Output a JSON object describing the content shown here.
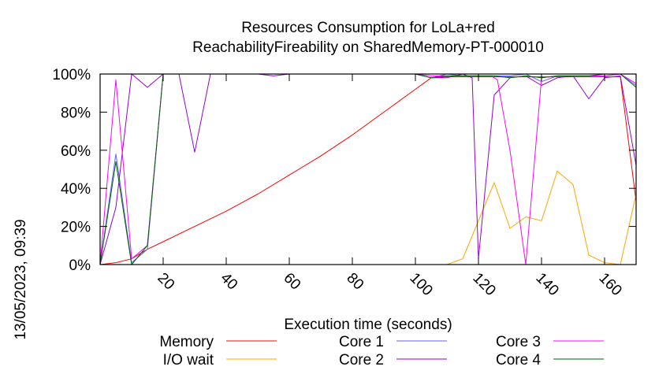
{
  "chart_data": {
    "type": "line",
    "title": "Resources Consumption for LoLa+red",
    "subtitle": "ReachabilityFireability on SharedMemory-PT-000010",
    "xlabel": "Execution time (seconds)",
    "ylabel": "",
    "side_label": "13/05/2023, 09:39",
    "xlim": [
      0,
      170
    ],
    "ylim": [
      0,
      100
    ],
    "x_ticks": [
      "20",
      "40",
      "60",
      "80",
      "100",
      "120",
      "140",
      "160"
    ],
    "y_ticks": [
      "0%",
      "20%",
      "40%",
      "60%",
      "80%",
      "100%"
    ],
    "grid": false,
    "legend_position": "bottom",
    "series": [
      {
        "name": "Memory",
        "color": "#ff0000",
        "points": [
          [
            0,
            0
          ],
          [
            5,
            1
          ],
          [
            10,
            3
          ],
          [
            15,
            8
          ],
          [
            20,
            12
          ],
          [
            30,
            20
          ],
          [
            40,
            28
          ],
          [
            50,
            37
          ],
          [
            60,
            47
          ],
          [
            70,
            57
          ],
          [
            80,
            68
          ],
          [
            90,
            80
          ],
          [
            100,
            92
          ],
          [
            105,
            98
          ],
          [
            110,
            98.5
          ],
          [
            120,
            98.5
          ],
          [
            130,
            98.5
          ],
          [
            140,
            98.5
          ],
          [
            150,
            98.5
          ],
          [
            160,
            98.5
          ],
          [
            165,
            98.5
          ],
          [
            170,
            33
          ]
        ]
      },
      {
        "name": "I/O wait",
        "color": "#ffa500",
        "points": [
          [
            0,
            0
          ],
          [
            105,
            0
          ],
          [
            110,
            0
          ],
          [
            115,
            3
          ],
          [
            119,
            19
          ],
          [
            125,
            43
          ],
          [
            130,
            19
          ],
          [
            135,
            25
          ],
          [
            140,
            23
          ],
          [
            145,
            49
          ],
          [
            150,
            42
          ],
          [
            155,
            5
          ],
          [
            160,
            1
          ],
          [
            165,
            0
          ],
          [
            170,
            37
          ]
        ]
      },
      {
        "name": "Core 1",
        "color": "#6060ff",
        "points": [
          [
            0,
            0
          ],
          [
            5,
            58
          ],
          [
            10,
            1
          ],
          [
            15,
            8
          ],
          [
            20,
            100
          ],
          [
            30,
            100
          ],
          [
            40,
            100
          ],
          [
            50,
            100
          ],
          [
            60,
            100
          ],
          [
            70,
            100
          ],
          [
            80,
            100
          ],
          [
            90,
            100
          ],
          [
            100,
            100
          ],
          [
            105,
            98
          ],
          [
            110,
            100
          ],
          [
            115,
            99
          ],
          [
            120,
            99
          ],
          [
            125,
            99
          ],
          [
            130,
            99
          ],
          [
            135,
            100
          ],
          [
            140,
            96
          ],
          [
            145,
            99
          ],
          [
            150,
            99
          ],
          [
            155,
            99
          ],
          [
            160,
            99
          ],
          [
            165,
            100
          ],
          [
            170,
            94
          ]
        ]
      },
      {
        "name": "Core 2",
        "color": "#9400d3",
        "points": [
          [
            0,
            0
          ],
          [
            5,
            30
          ],
          [
            10,
            100
          ],
          [
            15,
            93
          ],
          [
            20,
            100
          ],
          [
            25,
            100
          ],
          [
            30,
            59
          ],
          [
            35,
            100
          ],
          [
            40,
            100
          ],
          [
            50,
            100
          ],
          [
            55,
            99
          ],
          [
            60,
            100
          ],
          [
            70,
            100
          ],
          [
            80,
            100
          ],
          [
            90,
            100
          ],
          [
            100,
            100
          ],
          [
            105,
            98
          ],
          [
            110,
            98
          ],
          [
            115,
            100
          ],
          [
            118,
            98
          ],
          [
            120,
            3
          ],
          [
            125,
            89
          ],
          [
            130,
            98
          ],
          [
            135,
            99
          ],
          [
            140,
            94
          ],
          [
            145,
            98
          ],
          [
            150,
            99
          ],
          [
            155,
            87
          ],
          [
            160,
            98
          ],
          [
            165,
            99
          ],
          [
            170,
            52
          ]
        ]
      },
      {
        "name": "Core 3",
        "color": "#ff00ff",
        "points": [
          [
            0,
            0
          ],
          [
            5,
            97
          ],
          [
            10,
            3
          ],
          [
            15,
            10
          ],
          [
            20,
            100
          ],
          [
            30,
            100
          ],
          [
            40,
            100
          ],
          [
            50,
            100
          ],
          [
            60,
            100
          ],
          [
            70,
            100
          ],
          [
            80,
            100
          ],
          [
            90,
            100
          ],
          [
            100,
            100
          ],
          [
            105,
            99
          ],
          [
            110,
            99
          ],
          [
            115,
            99
          ],
          [
            120,
            99
          ],
          [
            124,
            99
          ],
          [
            126,
            97
          ],
          [
            130,
            60
          ],
          [
            135,
            0
          ],
          [
            140,
            98
          ],
          [
            145,
            99
          ],
          [
            150,
            99
          ],
          [
            155,
            99
          ],
          [
            160,
            99
          ],
          [
            165,
            100
          ],
          [
            170,
            95
          ]
        ]
      },
      {
        "name": "Core 4",
        "color": "#006400",
        "points": [
          [
            0,
            0
          ],
          [
            5,
            54
          ],
          [
            10,
            0
          ],
          [
            15,
            10
          ],
          [
            20,
            100
          ],
          [
            30,
            100
          ],
          [
            40,
            100
          ],
          [
            50,
            100
          ],
          [
            60,
            100
          ],
          [
            70,
            100
          ],
          [
            80,
            100
          ],
          [
            90,
            100
          ],
          [
            100,
            100
          ],
          [
            105,
            98
          ],
          [
            110,
            99
          ],
          [
            115,
            99
          ],
          [
            120,
            99
          ],
          [
            125,
            99
          ],
          [
            130,
            98
          ],
          [
            135,
            99
          ],
          [
            140,
            98
          ],
          [
            145,
            99
          ],
          [
            150,
            99
          ],
          [
            155,
            99
          ],
          [
            160,
            100
          ],
          [
            165,
            100
          ],
          [
            170,
            93
          ]
        ]
      }
    ]
  }
}
